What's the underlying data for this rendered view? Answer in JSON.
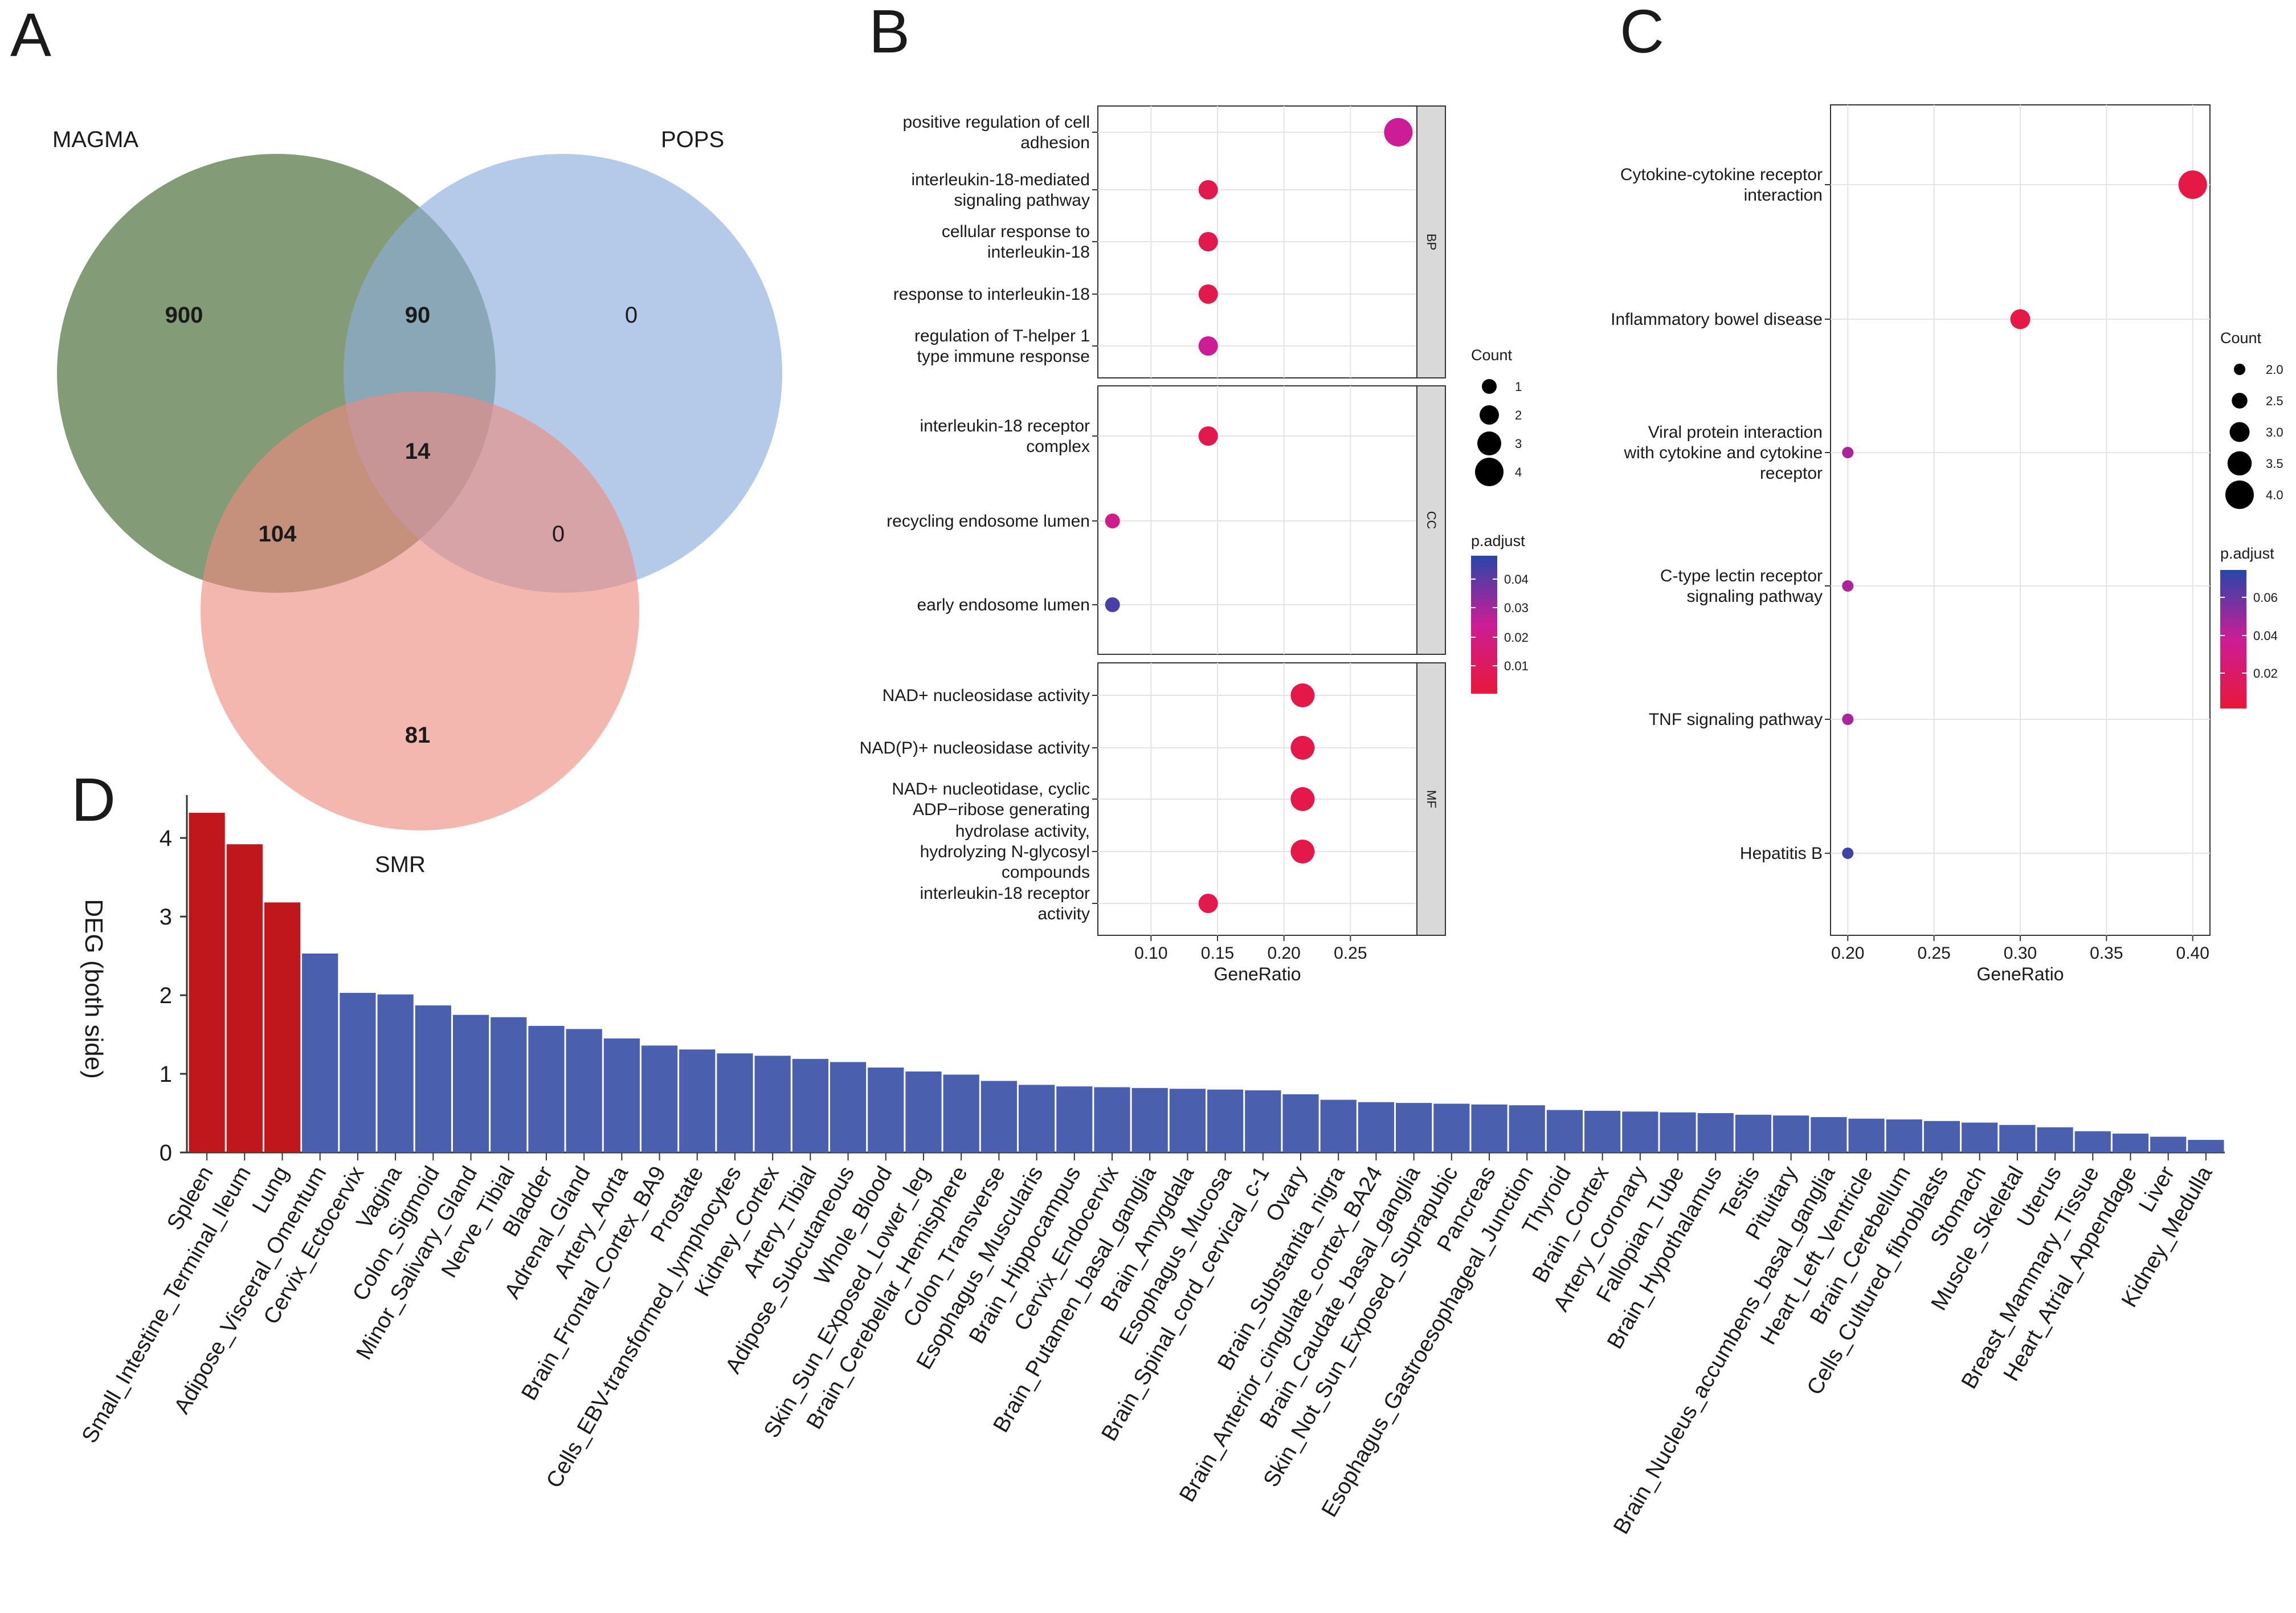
{
  "panels": {
    "A": "A",
    "B": "B",
    "C": "C",
    "D": "D"
  },
  "venn": {
    "sets": [
      {
        "name": "MAGMA",
        "color": "#5a7a48"
      },
      {
        "name": "POPS",
        "color": "#8eaedb"
      },
      {
        "name": "SMR",
        "color": "#ee8a80"
      }
    ],
    "regions": {
      "magma_only": "900",
      "magma_pops": "90",
      "pops_only": "0",
      "all_three": "14",
      "magma_smr": "104",
      "pops_smr": "0",
      "smr_only": "81"
    }
  },
  "chart_data": [
    {
      "id": "B",
      "type": "scatter",
      "title": "",
      "xlabel": "GeneRatio",
      "xlim": [
        0.06,
        0.3
      ],
      "xticks": [
        "0.10",
        "0.15",
        "0.20",
        "0.25"
      ],
      "facets": [
        {
          "name": "BP",
          "points": [
            {
              "term": "positive regulation of cell\nadhesion",
              "gene_ratio": 0.286,
              "count": 4,
              "p_adjust": 0.025
            },
            {
              "term": "interleukin-18-mediated\nsignaling pathway",
              "gene_ratio": 0.143,
              "count": 2,
              "p_adjust": 0.005
            },
            {
              "term": "cellular response to\ninterleukin-18",
              "gene_ratio": 0.143,
              "count": 2,
              "p_adjust": 0.005
            },
            {
              "term": "response to interleukin-18",
              "gene_ratio": 0.143,
              "count": 2,
              "p_adjust": 0.005
            },
            {
              "term": "regulation of T-helper 1\ntype immune response",
              "gene_ratio": 0.143,
              "count": 2,
              "p_adjust": 0.025
            }
          ]
        },
        {
          "name": "CC",
          "points": [
            {
              "term": "interleukin-18 receptor\ncomplex",
              "gene_ratio": 0.143,
              "count": 2,
              "p_adjust": 0.005
            },
            {
              "term": "recycling endosome lumen",
              "gene_ratio": 0.071,
              "count": 1,
              "p_adjust": 0.022
            },
            {
              "term": "early endosome lumen",
              "gene_ratio": 0.071,
              "count": 1,
              "p_adjust": 0.045
            }
          ]
        },
        {
          "name": "MF",
          "points": [
            {
              "term": "NAD+ nucleosidase activity",
              "gene_ratio": 0.214,
              "count": 3,
              "p_adjust": 0.004
            },
            {
              "term": "NAD(P)+ nucleosidase activity",
              "gene_ratio": 0.214,
              "count": 3,
              "p_adjust": 0.004
            },
            {
              "term": "NAD+ nucleotidase, cyclic\nADP−ribose generating",
              "gene_ratio": 0.214,
              "count": 3,
              "p_adjust": 0.004
            },
            {
              "term": "hydrolase activity,\nhydrolyzing N-glycosyl\ncompounds",
              "gene_ratio": 0.214,
              "count": 3,
              "p_adjust": 0.004
            },
            {
              "term": "interleukin-18 receptor\nactivity",
              "gene_ratio": 0.143,
              "count": 2,
              "p_adjust": 0.005
            }
          ]
        }
      ],
      "size_legend": {
        "title": "Count",
        "labels": [
          "1",
          "2",
          "3",
          "4"
        ]
      },
      "color_legend": {
        "title": "p.adjust",
        "labels": [
          "0.04",
          "0.03",
          "0.02",
          "0.01"
        ],
        "range": [
          0.0,
          0.05
        ]
      }
    },
    {
      "id": "C",
      "type": "scatter",
      "title": "",
      "xlabel": "GeneRatio",
      "xlim": [
        0.19,
        0.41
      ],
      "xticks": [
        "0.20",
        "0.25",
        "0.30",
        "0.35",
        "0.40"
      ],
      "points": [
        {
          "term": "Cytokine-cytokine receptor\ninteraction",
          "gene_ratio": 0.4,
          "count": 4,
          "p_adjust": 0.005
        },
        {
          "term": "Inflammatory bowel disease",
          "gene_ratio": 0.3,
          "count": 3,
          "p_adjust": 0.005
        },
        {
          "term": "Viral protein interaction\nwith cytokine and cytokine\nreceptor",
          "gene_ratio": 0.2,
          "count": 2,
          "p_adjust": 0.045
        },
        {
          "term": "C-type lectin receptor\nsignaling pathway",
          "gene_ratio": 0.2,
          "count": 2,
          "p_adjust": 0.045
        },
        {
          "term": "TNF signaling pathway",
          "gene_ratio": 0.2,
          "count": 2,
          "p_adjust": 0.045
        },
        {
          "term": "Hepatitis B",
          "gene_ratio": 0.2,
          "count": 2,
          "p_adjust": 0.07
        }
      ],
      "size_legend": {
        "title": "Count",
        "labels": [
          "2.0",
          "2.5",
          "3.0",
          "3.5",
          "4.0"
        ]
      },
      "color_legend": {
        "title": "p.adjust",
        "labels": [
          "0.06",
          "0.04",
          "0.02"
        ],
        "range": [
          0.0,
          0.075
        ]
      }
    },
    {
      "id": "D",
      "type": "bar",
      "title": "",
      "xlabel": "",
      "ylabel": "DEG (both side)",
      "ylim": [
        0,
        4.4
      ],
      "yticks": [
        "0",
        "1",
        "2",
        "3",
        "4"
      ],
      "highlight_color": "#c0171d",
      "base_color": "#4a5fae",
      "categories": [
        "Spleen",
        "Small_Intestine_Terminal_Ileum",
        "Lung",
        "Adipose_Visceral_Omentum",
        "Cervix_Ectocervix",
        "Vagina",
        "Colon_Sigmoid",
        "Minor_Salivary_Gland",
        "Nerve_Tibial",
        "Bladder",
        "Adrenal_Gland",
        "Artery_Aorta",
        "Brain_Frontal_Cortex_BA9",
        "Prostate",
        "Cells_EBV-transformed_lymphocytes",
        "Kidney_Cortex",
        "Artery_Tibial",
        "Adipose_Subcutaneous",
        "Whole_Blood",
        "Skin_Sun_Exposed_Lower_leg",
        "Brain_Cerebellar_Hemisphere",
        "Colon_Transverse",
        "Esophagus_Muscularis",
        "Brain_Hippocampus",
        "Cervix_Endocervix",
        "Brain_Putamen_basal_ganglia",
        "Brain_Amygdala",
        "Esophagus_Mucosa",
        "Brain_Spinal_cord_cervical_c-1",
        "Ovary",
        "Brain_Substantia_nigra",
        "Brain_Anterior_cingulate_cortex_BA24",
        "Brain_Caudate_basal_ganglia",
        "Skin_Not_Sun_Exposed_Suprapubic",
        "Pancreas",
        "Esophagus_Gastroesophageal_Junction",
        "Thyroid",
        "Brain_Cortex",
        "Artery_Coronary",
        "Fallopian_Tube",
        "Brain_Hypothalamus",
        "Testis",
        "Pituitary",
        "Brain_Nucleus_accumbens_basal_ganglia",
        "Heart_Left_Ventricle",
        "Brain_Cerebellum",
        "Cells_Cultured_fibroblasts",
        "Stomach",
        "Muscle_Skeletal",
        "Uterus",
        "Breast_Mammary_Tissue",
        "Heart_Atrial_Appendage",
        "Liver",
        "Kidney_Medulla"
      ],
      "values": [
        4.32,
        3.92,
        3.18,
        2.53,
        2.03,
        2.01,
        1.87,
        1.75,
        1.72,
        1.61,
        1.57,
        1.45,
        1.36,
        1.31,
        1.26,
        1.23,
        1.19,
        1.15,
        1.08,
        1.03,
        0.99,
        0.91,
        0.86,
        0.84,
        0.83,
        0.82,
        0.81,
        0.8,
        0.79,
        0.74,
        0.67,
        0.64,
        0.63,
        0.62,
        0.61,
        0.6,
        0.54,
        0.53,
        0.52,
        0.51,
        0.5,
        0.48,
        0.47,
        0.45,
        0.43,
        0.42,
        0.4,
        0.38,
        0.35,
        0.32,
        0.27,
        0.24,
        0.2,
        0.16
      ],
      "highlighted_count": 3
    }
  ]
}
